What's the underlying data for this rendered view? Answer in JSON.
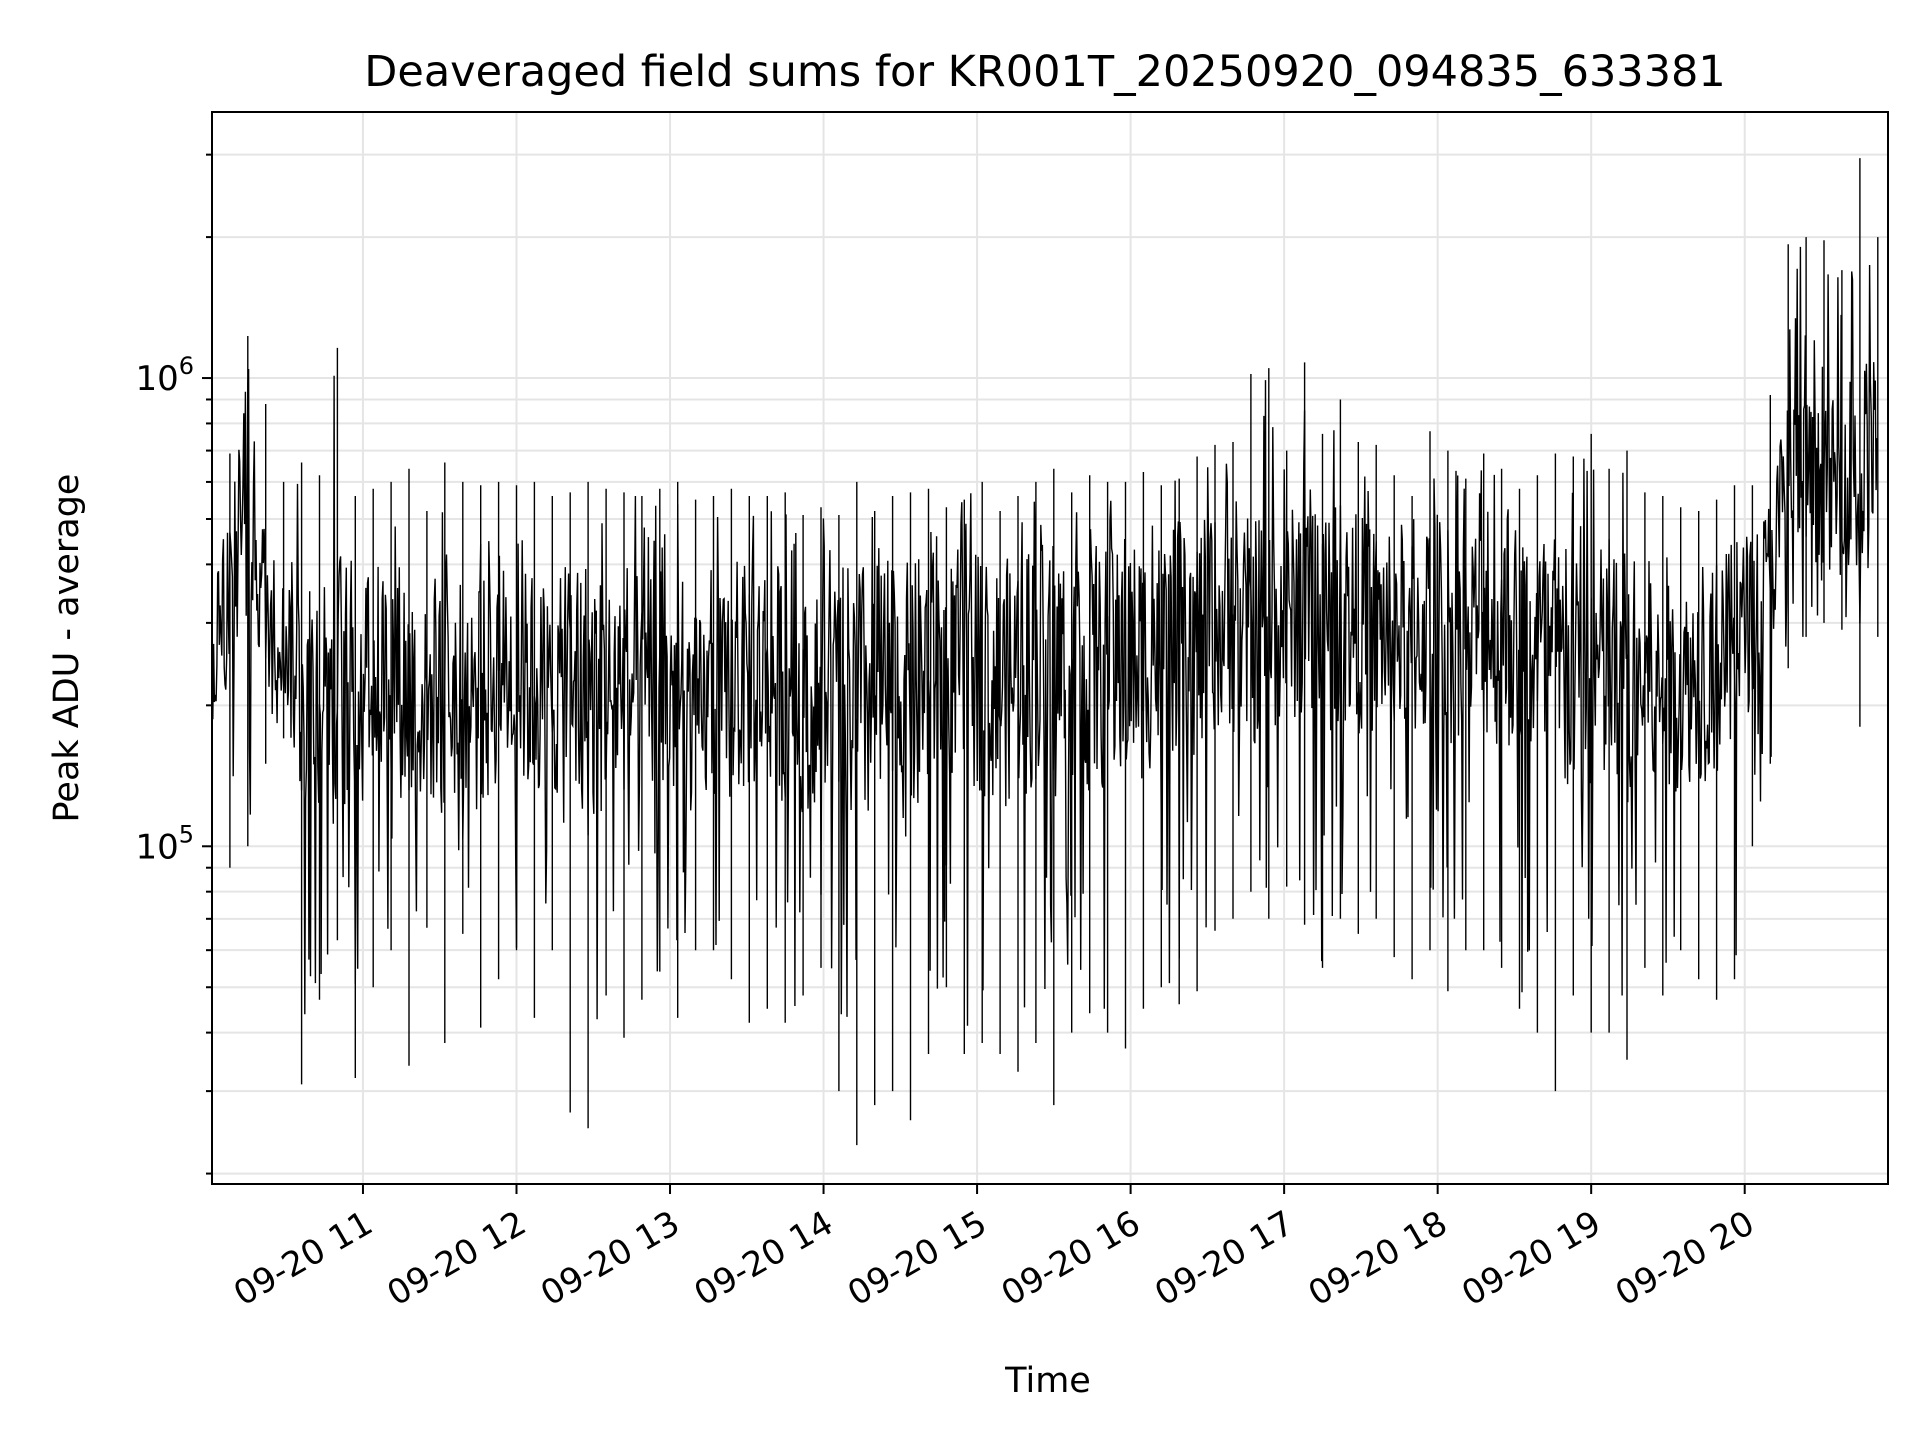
{
  "chart_data": {
    "type": "line",
    "title": "Deaveraged field sums for KR001T_20250920_094835_633381",
    "xlabel": "Time",
    "ylabel": "Peak ADU - average",
    "xlim": [
      "2025-09-20T10:01",
      "2025-09-20T20:56"
    ],
    "ylim": [
      19000,
      3700000
    ],
    "yscale": "log",
    "grid": true,
    "line_color": "#000000",
    "x_ticks": [
      {
        "value": "2025-09-20T11:00",
        "label": "09-20 11"
      },
      {
        "value": "2025-09-20T12:00",
        "label": "09-20 12"
      },
      {
        "value": "2025-09-20T13:00",
        "label": "09-20 13"
      },
      {
        "value": "2025-09-20T14:00",
        "label": "09-20 14"
      },
      {
        "value": "2025-09-20T15:00",
        "label": "09-20 15"
      },
      {
        "value": "2025-09-20T16:00",
        "label": "09-20 16"
      },
      {
        "value": "2025-09-20T17:00",
        "label": "09-20 17"
      },
      {
        "value": "2025-09-20T18:00",
        "label": "09-20 18"
      },
      {
        "value": "2025-09-20T19:00",
        "label": "09-20 19"
      },
      {
        "value": "2025-09-20T20:00",
        "label": "09-20 20"
      }
    ],
    "y_ticks": [
      {
        "value": 100000,
        "base": "10",
        "exp": "5"
      },
      {
        "value": 1000000,
        "base": "10",
        "exp": "6"
      }
    ],
    "x": [
      "2025-09-20T10:01",
      "2025-09-20T10:08",
      "2025-09-20T10:15",
      "2025-09-20T10:22",
      "2025-09-20T10:29",
      "2025-09-20T10:36",
      "2025-09-20T10:43",
      "2025-09-20T10:50",
      "2025-09-20T10:57",
      "2025-09-20T11:04",
      "2025-09-20T11:11",
      "2025-09-20T11:18",
      "2025-09-20T11:25",
      "2025-09-20T11:32",
      "2025-09-20T11:39",
      "2025-09-20T11:46",
      "2025-09-20T11:53",
      "2025-09-20T12:00",
      "2025-09-20T12:07",
      "2025-09-20T12:14",
      "2025-09-20T12:21",
      "2025-09-20T12:28",
      "2025-09-20T12:35",
      "2025-09-20T12:42",
      "2025-09-20T12:49",
      "2025-09-20T12:56",
      "2025-09-20T13:03",
      "2025-09-20T13:10",
      "2025-09-20T13:17",
      "2025-09-20T13:24",
      "2025-09-20T13:31",
      "2025-09-20T13:38",
      "2025-09-20T13:45",
      "2025-09-20T13:52",
      "2025-09-20T13:59",
      "2025-09-20T14:06",
      "2025-09-20T14:13",
      "2025-09-20T14:20",
      "2025-09-20T14:27",
      "2025-09-20T14:34",
      "2025-09-20T14:41",
      "2025-09-20T14:48",
      "2025-09-20T14:55",
      "2025-09-20T15:02",
      "2025-09-20T15:09",
      "2025-09-20T15:16",
      "2025-09-20T15:23",
      "2025-09-20T15:30",
      "2025-09-20T15:37",
      "2025-09-20T15:44",
      "2025-09-20T15:51",
      "2025-09-20T15:58",
      "2025-09-20T16:05",
      "2025-09-20T16:12",
      "2025-09-20T16:19",
      "2025-09-20T16:26",
      "2025-09-20T16:33",
      "2025-09-20T16:40",
      "2025-09-20T16:47",
      "2025-09-20T16:54",
      "2025-09-20T17:01",
      "2025-09-20T17:08",
      "2025-09-20T17:15",
      "2025-09-20T17:22",
      "2025-09-20T17:29",
      "2025-09-20T17:36",
      "2025-09-20T17:43",
      "2025-09-20T17:50",
      "2025-09-20T17:57",
      "2025-09-20T18:04",
      "2025-09-20T18:11",
      "2025-09-20T18:18",
      "2025-09-20T18:25",
      "2025-09-20T18:32",
      "2025-09-20T18:39",
      "2025-09-20T18:46",
      "2025-09-20T18:53",
      "2025-09-20T19:00",
      "2025-09-20T19:07",
      "2025-09-20T19:14",
      "2025-09-20T19:21",
      "2025-09-20T19:28",
      "2025-09-20T19:35",
      "2025-09-20T19:42",
      "2025-09-20T19:49",
      "2025-09-20T19:56",
      "2025-09-20T20:03",
      "2025-09-20T20:10",
      "2025-09-20T20:17",
      "2025-09-20T20:24",
      "2025-09-20T20:31",
      "2025-09-20T20:38",
      "2025-09-20T20:45",
      "2025-09-20T20:52"
    ],
    "y_high": [
      560000,
      690000,
      1230000,
      880000,
      600000,
      660000,
      620000,
      1160000,
      560000,
      580000,
      600000,
      640000,
      520000,
      660000,
      600000,
      590000,
      600000,
      590000,
      600000,
      560000,
      570000,
      600000,
      580000,
      570000,
      560000,
      580000,
      600000,
      550000,
      560000,
      580000,
      560000,
      560000,
      570000,
      510000,
      530000,
      510000,
      600000,
      520000,
      560000,
      570000,
      580000,
      530000,
      550000,
      600000,
      520000,
      560000,
      600000,
      640000,
      570000,
      620000,
      600000,
      600000,
      630000,
      590000,
      610000,
      680000,
      720000,
      730000,
      1020000,
      1050000,
      700000,
      1080000,
      760000,
      900000,
      730000,
      720000,
      620000,
      560000,
      770000,
      700000,
      610000,
      690000,
      640000,
      580000,
      620000,
      690000,
      680000,
      760000,
      640000,
      700000,
      570000,
      560000,
      530000,
      520000,
      550000,
      590000,
      590000,
      920000,
      1930000,
      2000000,
      1970000,
      1700000,
      2950000,
      2000000
    ],
    "y_low": [
      140000,
      90000,
      100000,
      150000,
      170000,
      31000,
      47000,
      63000,
      32000,
      50000,
      60000,
      34000,
      67000,
      38000,
      65000,
      41000,
      52000,
      60000,
      43000,
      60000,
      27000,
      25000,
      48000,
      39000,
      47000,
      54000,
      43000,
      60000,
      60000,
      52000,
      42000,
      45000,
      42000,
      48000,
      55000,
      30000,
      23000,
      28000,
      30000,
      26000,
      36000,
      50000,
      36000,
      38000,
      36000,
      33000,
      38000,
      28000,
      40000,
      44000,
      40000,
      37000,
      45000,
      50000,
      46000,
      49000,
      66000,
      70000,
      80000,
      70000,
      82000,
      68000,
      55000,
      70000,
      65000,
      70000,
      58000,
      52000,
      60000,
      49000,
      60000,
      60000,
      55000,
      45000,
      40000,
      30000,
      48000,
      40000,
      40000,
      35000,
      55000,
      48000,
      60000,
      52000,
      47000,
      52000,
      100000,
      150000,
      240000,
      280000,
      300000,
      290000,
      180000,
      280000
    ],
    "y_mean": [
      250000,
      340000,
      560000,
      320000,
      280000,
      230000,
      220000,
      240000,
      210000,
      230000,
      250000,
      210000,
      200000,
      210000,
      220000,
      200000,
      240000,
      230000,
      220000,
      215000,
      200000,
      210000,
      210000,
      230000,
      220000,
      200000,
      220000,
      190000,
      200000,
      215000,
      230000,
      240000,
      220000,
      200000,
      210000,
      205000,
      200000,
      210000,
      220000,
      200000,
      240000,
      240000,
      245000,
      240000,
      220000,
      230000,
      250000,
      240000,
      250000,
      230000,
      240000,
      250000,
      250000,
      270000,
      280000,
      270000,
      300000,
      280000,
      290000,
      300000,
      310000,
      330000,
      320000,
      310000,
      300000,
      290000,
      300000,
      280000,
      300000,
      290000,
      300000,
      290000,
      280000,
      280000,
      260000,
      240000,
      220000,
      240000,
      230000,
      230000,
      220000,
      210000,
      220000,
      230000,
      240000,
      260000,
      310000,
      380000,
      620000,
      600000,
      560000,
      640000,
      620000,
      700000
    ]
  }
}
